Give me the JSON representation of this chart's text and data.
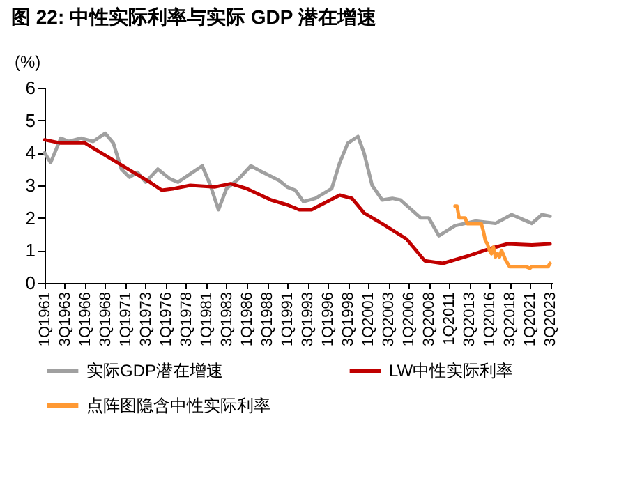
{
  "chart_data": {
    "type": "line",
    "title": "图 22: 中性实际利率与实际 GDP 潜在增速",
    "ylabel": "(%)",
    "xlim": [
      "1961-01",
      "2023-10"
    ],
    "ylim": [
      0,
      6
    ],
    "yticks": [
      0,
      1,
      2,
      3,
      4,
      5,
      6
    ],
    "xticks": [
      {
        "value": "1961-01",
        "label": "1Q1961"
      },
      {
        "value": "1963-07",
        "label": "3Q1963"
      },
      {
        "value": "1966-01",
        "label": "1Q1966"
      },
      {
        "value": "1968-07",
        "label": "3Q1968"
      },
      {
        "value": "1971-01",
        "label": "1Q1971"
      },
      {
        "value": "1973-07",
        "label": "3Q1973"
      },
      {
        "value": "1976-01",
        "label": "1Q1976"
      },
      {
        "value": "1978-07",
        "label": "3Q1978"
      },
      {
        "value": "1981-01",
        "label": "1Q1981"
      },
      {
        "value": "1983-07",
        "label": "3Q1983"
      },
      {
        "value": "1986-01",
        "label": "1Q1986"
      },
      {
        "value": "1988-07",
        "label": "3Q1988"
      },
      {
        "value": "1991-01",
        "label": "1Q1991"
      },
      {
        "value": "1993-07",
        "label": "3Q1993"
      },
      {
        "value": "1996-01",
        "label": "1Q1996"
      },
      {
        "value": "1998-07",
        "label": "3Q1998"
      },
      {
        "value": "2001-01",
        "label": "1Q2001"
      },
      {
        "value": "2003-07",
        "label": "3Q2003"
      },
      {
        "value": "2006-01",
        "label": "1Q2006"
      },
      {
        "value": "2008-07",
        "label": "3Q2008"
      },
      {
        "value": "2011-01",
        "label": "1Q2011"
      },
      {
        "value": "2013-07",
        "label": "3Q2013"
      },
      {
        "value": "2016-01",
        "label": "1Q2016"
      },
      {
        "value": "2018-07",
        "label": "3Q2018"
      },
      {
        "value": "2021-01",
        "label": "1Q2021"
      },
      {
        "value": "2023-07",
        "label": "3Q2023"
      }
    ],
    "grid": false,
    "legend": "bottom",
    "series": [
      {
        "name": "实际GDP潜在增速",
        "color": "#a0a0a0",
        "x": [
          "1961-01",
          "1961-10",
          "1963-01",
          "1964-01",
          "1965-07",
          "1967-01",
          "1968-07",
          "1969-07",
          "1970-07",
          "1971-07",
          "1972-07",
          "1973-07",
          "1975-01",
          "1976-07",
          "1977-07",
          "1979-01",
          "1980-07",
          "1981-07",
          "1982-07",
          "1983-07",
          "1985-01",
          "1986-07",
          "1988-01",
          "1990-01",
          "1991-01",
          "1992-01",
          "1993-01",
          "1994-07",
          "1996-07",
          "1997-07",
          "1998-07",
          "1999-10",
          "2000-07",
          "2001-07",
          "2002-10",
          "2004-01",
          "2005-01",
          "2007-07",
          "2008-07",
          "2009-10",
          "2011-10",
          "2014-04",
          "2016-10",
          "2018-10",
          "2021-04",
          "2022-07",
          "2023-07"
        ],
        "values": [
          4.0,
          3.7,
          4.45,
          4.35,
          4.45,
          4.35,
          4.6,
          4.3,
          3.5,
          3.25,
          3.4,
          3.1,
          3.5,
          3.2,
          3.1,
          3.35,
          3.6,
          3.0,
          2.25,
          2.9,
          3.2,
          3.6,
          3.4,
          3.15,
          2.95,
          2.85,
          2.5,
          2.6,
          2.9,
          3.7,
          4.3,
          4.5,
          4.0,
          3.0,
          2.55,
          2.6,
          2.55,
          2.0,
          2.0,
          1.45,
          1.76,
          1.9,
          1.83,
          2.1,
          1.83,
          2.1,
          2.05
        ]
      },
      {
        "name": "LW中性实际利率",
        "color": "#c00000",
        "x": [
          "1961-01",
          "1963-01",
          "1966-01",
          "1968-01",
          "1970-01",
          "1972-01",
          "1974-01",
          "1975-07",
          "1977-01",
          "1979-01",
          "1982-01",
          "1984-01",
          "1986-01",
          "1989-01",
          "1991-01",
          "1992-07",
          "1994-01",
          "1997-07",
          "1999-01",
          "2000-07",
          "2003-01",
          "2005-10",
          "2008-01",
          "2010-04",
          "2013-10",
          "2016-01",
          "2018-04",
          "2021-04",
          "2023-07"
        ],
        "values": [
          4.4,
          4.3,
          4.3,
          4.0,
          3.7,
          3.4,
          3.1,
          2.85,
          2.9,
          3.0,
          2.95,
          3.05,
          2.9,
          2.55,
          2.4,
          2.25,
          2.25,
          2.7,
          2.6,
          2.15,
          1.78,
          1.35,
          0.68,
          0.6,
          0.86,
          1.05,
          1.2,
          1.17,
          1.2
        ]
      },
      {
        "name": "点阵图隐含中性实际利率",
        "color": "#ff9933",
        "x": [
          "2011-10",
          "2012-01",
          "2012-04",
          "2013-01",
          "2013-04",
          "2014-01",
          "2015-01",
          "2015-04",
          "2015-07",
          "2015-10",
          "2016-01",
          "2016-04",
          "2016-07",
          "2016-10",
          "2017-01",
          "2017-04",
          "2017-07",
          "2017-10",
          "2018-01",
          "2018-07",
          "2020-07",
          "2021-01",
          "2021-04",
          "2023-04",
          "2023-07"
        ],
        "values": [
          2.36,
          2.36,
          2.0,
          2.0,
          1.82,
          1.82,
          1.82,
          1.6,
          1.3,
          1.2,
          1.0,
          0.9,
          1.1,
          0.8,
          0.9,
          0.8,
          1.0,
          0.85,
          0.7,
          0.5,
          0.5,
          0.45,
          0.5,
          0.5,
          0.6
        ]
      }
    ]
  }
}
